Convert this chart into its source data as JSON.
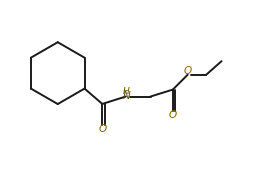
{
  "bg_color": "#ffffff",
  "line_color": "#1a1a1a",
  "text_color": "#1a1a1a",
  "atom_color_O": "#8b6000",
  "atom_color_N": "#5c4a00",
  "line_width": 1.4,
  "figsize": [
    2.54,
    1.71
  ],
  "dpi": 100,
  "xlim": [
    0,
    10
  ],
  "ylim": [
    0,
    6.8
  ]
}
